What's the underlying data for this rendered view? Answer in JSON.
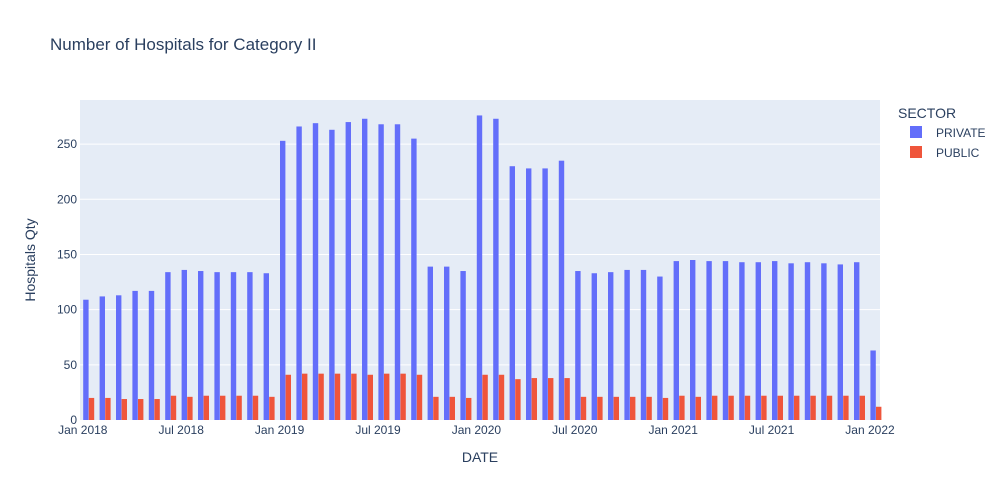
{
  "chart_data": {
    "type": "bar",
    "title": "Number of Hospitals for Category II",
    "xlabel": "DATE",
    "ylabel": "Hospitals Qty",
    "ylim": [
      0,
      290
    ],
    "yticks": [
      0,
      50,
      100,
      150,
      200,
      250
    ],
    "xticks": [
      "Jan 2018",
      "Jul 2018",
      "Jan 2019",
      "Jul 2019",
      "Jan 2020",
      "Jul 2020",
      "Jan 2021",
      "Jul 2021",
      "Jan 2022"
    ],
    "xtick_positions": [
      0,
      6,
      12,
      18,
      24,
      30,
      36,
      42,
      48
    ],
    "legend_title": "SECTOR",
    "legend_position": "top-right",
    "grid": true,
    "categories": [
      "2018-01",
      "2018-02",
      "2018-03",
      "2018-04",
      "2018-05",
      "2018-06",
      "2018-07",
      "2018-08",
      "2018-09",
      "2018-10",
      "2018-11",
      "2018-12",
      "2019-01",
      "2019-02",
      "2019-03",
      "2019-04",
      "2019-05",
      "2019-06",
      "2019-07",
      "2019-08",
      "2019-09",
      "2019-10",
      "2019-11",
      "2019-12",
      "2020-01",
      "2020-02",
      "2020-03",
      "2020-04",
      "2020-05",
      "2020-06",
      "2020-07",
      "2020-08",
      "2020-09",
      "2020-10",
      "2020-11",
      "2020-12",
      "2021-01",
      "2021-02",
      "2021-03",
      "2021-04",
      "2021-05",
      "2021-06",
      "2021-07",
      "2021-08",
      "2021-09",
      "2021-10",
      "2021-11",
      "2021-12",
      "2022-01"
    ],
    "series": [
      {
        "name": "PRIVATE",
        "color": "#636efa",
        "values": [
          109,
          112,
          113,
          117,
          117,
          134,
          136,
          135,
          134,
          134,
          134,
          133,
          253,
          266,
          269,
          263,
          270,
          273,
          268,
          268,
          255,
          139,
          139,
          135,
          276,
          273,
          230,
          228,
          228,
          235,
          135,
          133,
          134,
          136,
          136,
          130,
          144,
          145,
          144,
          144,
          143,
          143,
          144,
          142,
          143,
          142,
          141,
          143,
          63
        ]
      },
      {
        "name": "PUBLIC",
        "color": "#ef553b",
        "values": [
          20,
          20,
          19,
          19,
          19,
          22,
          21,
          22,
          22,
          22,
          22,
          21,
          41,
          42,
          42,
          42,
          42,
          41,
          42,
          42,
          41,
          21,
          21,
          20,
          41,
          41,
          37,
          38,
          38,
          38,
          21,
          21,
          21,
          21,
          21,
          20,
          22,
          21,
          22,
          22,
          22,
          22,
          22,
          22,
          22,
          22,
          22,
          22,
          12
        ]
      }
    ]
  }
}
